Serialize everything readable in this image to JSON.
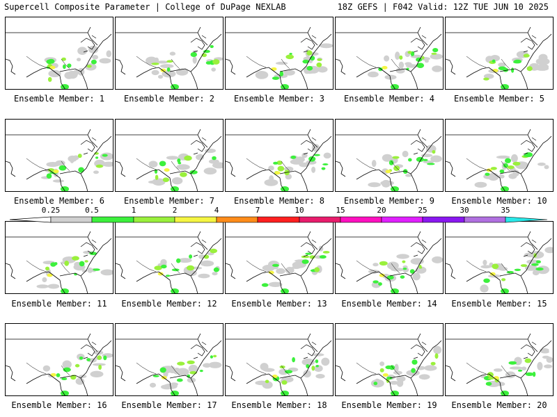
{
  "header": {
    "left": "Supercell Composite Parameter | College of DuPage NEXLAB",
    "right": "18Z GEFS | F042 Valid: 12Z TUE JUN 10 2025"
  },
  "members": [
    "Ensemble Member: 1",
    "Ensemble Member: 2",
    "Ensemble Member: 3",
    "Ensemble Member: 4",
    "Ensemble Member: 5",
    "Ensemble Member: 6",
    "Ensemble Member: 7",
    "Ensemble Member: 8",
    "Ensemble Member: 9",
    "Ensemble Member: 10",
    "Ensemble Member: 11",
    "Ensemble Member: 12",
    "Ensemble Member: 13",
    "Ensemble Member: 14",
    "Ensemble Member: 15",
    "Ensemble Member: 16",
    "Ensemble Member: 17",
    "Ensemble Member: 18",
    "Ensemble Member: 19",
    "Ensemble Member: 20"
  ],
  "colorbar": {
    "ticks": [
      "0.25",
      "0.5",
      "1",
      "2",
      "4",
      "7",
      "10",
      "15",
      "20",
      "25",
      "30",
      "35"
    ],
    "colors": [
      "#d0d0d0",
      "#3cf03c",
      "#9af03c",
      "#f5f542",
      "#ff8c1a",
      "#ff2020",
      "#e81c6c",
      "#ff10c0",
      "#e020ff",
      "#8a18f0",
      "#b070e0",
      "#28e8e8"
    ]
  }
}
